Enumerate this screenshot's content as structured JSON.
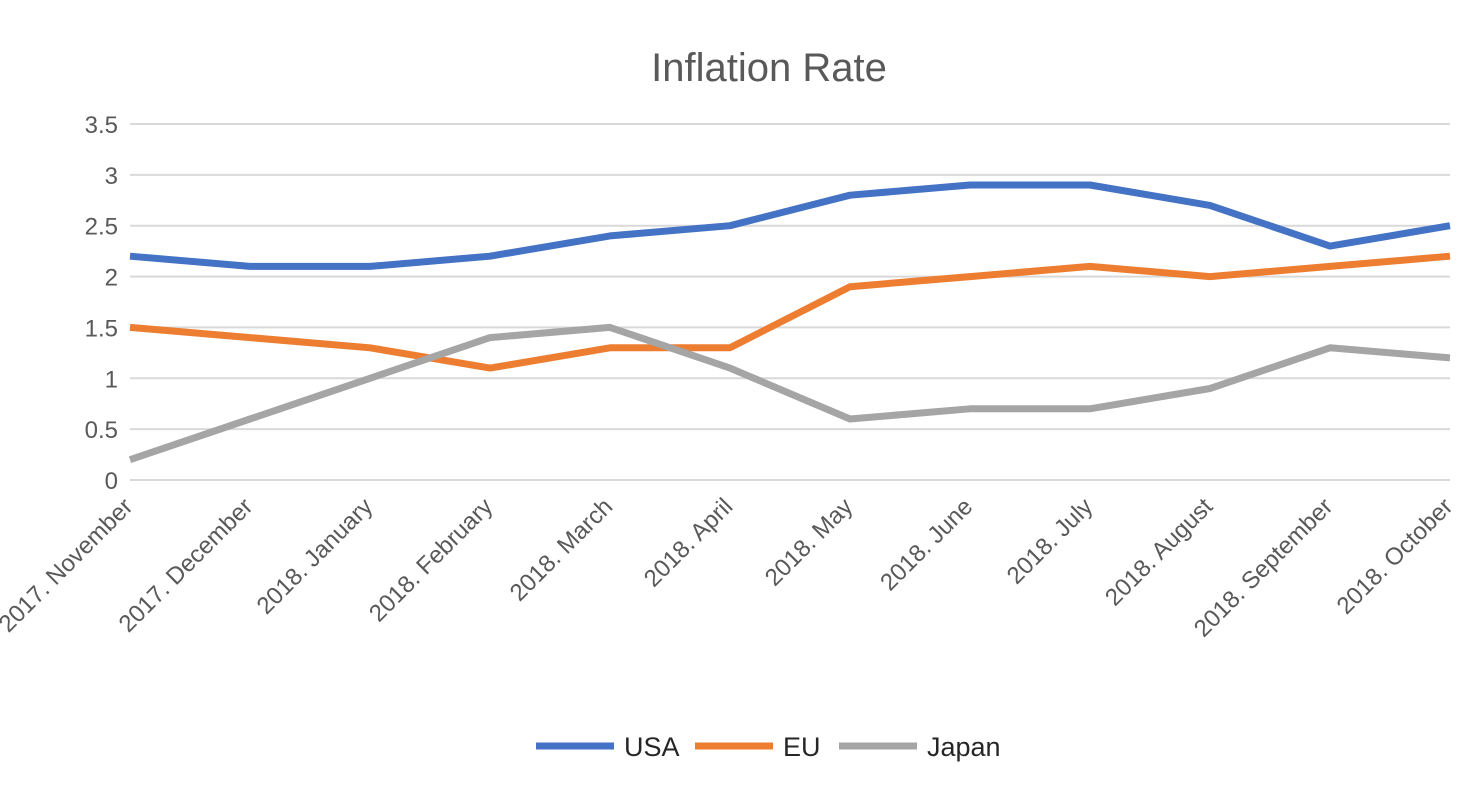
{
  "chart_data": {
    "type": "line",
    "title": "Inflation Rate",
    "xlabel": "",
    "ylabel": "",
    "categories": [
      "2017. November",
      "2017. December",
      "2018. January",
      "2018. February",
      "2018. March",
      "2018. April",
      "2018. May",
      "2018. June",
      "2018. July",
      "2018. August",
      "2018. September",
      "2018. October"
    ],
    "ylim": [
      0,
      3.5
    ],
    "yticks": [
      "0",
      "0.5",
      "1",
      "1.5",
      "2",
      "2.5",
      "3",
      "3.5"
    ],
    "grid": true,
    "legend_position": "bottom",
    "series": [
      {
        "name": "USA",
        "color": "#4472c4",
        "values": [
          2.2,
          2.1,
          2.1,
          2.2,
          2.4,
          2.5,
          2.8,
          2.9,
          2.9,
          2.7,
          2.3,
          2.5
        ]
      },
      {
        "name": "EU",
        "color": "#ed7d31",
        "values": [
          1.5,
          1.4,
          1.3,
          1.1,
          1.3,
          1.3,
          1.9,
          2.0,
          2.1,
          2.0,
          2.1,
          2.2
        ]
      },
      {
        "name": "Japan",
        "color": "#a5a5a5",
        "values": [
          0.2,
          0.6,
          1.0,
          1.4,
          1.5,
          1.1,
          0.6,
          0.7,
          0.7,
          0.9,
          1.3,
          1.2
        ]
      }
    ]
  }
}
